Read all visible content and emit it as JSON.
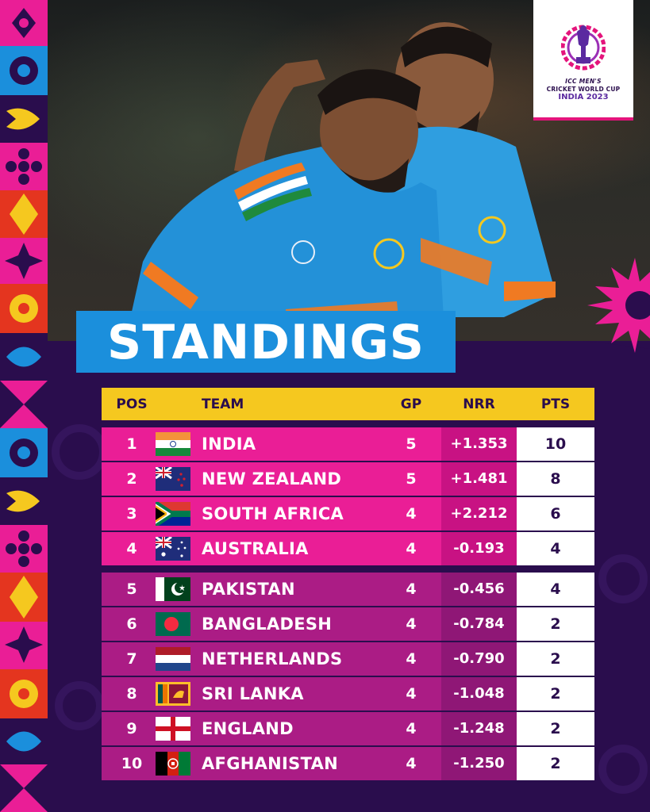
{
  "logo": {
    "line1": "ICC MEN'S",
    "line2": "CRICKET WORLD CUP",
    "line3": "INDIA 2023",
    "icon": "trophy-logo-icon"
  },
  "heading": "STANDINGS",
  "table": {
    "headers": {
      "pos": "POS",
      "team": "TEAM",
      "gp": "GP",
      "nrr": "NRR",
      "pts": "PTS"
    },
    "rows": [
      {
        "pos": "1",
        "team": "INDIA",
        "gp": "5",
        "nrr": "+1.353",
        "pts": "10",
        "flag": "india-flag-icon"
      },
      {
        "pos": "2",
        "team": "NEW ZEALAND",
        "gp": "5",
        "nrr": "+1.481",
        "pts": "8",
        "flag": "new-zealand-flag-icon"
      },
      {
        "pos": "3",
        "team": "SOUTH AFRICA",
        "gp": "4",
        "nrr": "+2.212",
        "pts": "6",
        "flag": "south-africa-flag-icon"
      },
      {
        "pos": "4",
        "team": "AUSTRALIA",
        "gp": "4",
        "nrr": "-0.193",
        "pts": "4",
        "flag": "australia-flag-icon"
      },
      {
        "pos": "5",
        "team": "PAKISTAN",
        "gp": "4",
        "nrr": "-0.456",
        "pts": "4",
        "flag": "pakistan-flag-icon"
      },
      {
        "pos": "6",
        "team": "BANGLADESH",
        "gp": "4",
        "nrr": "-0.784",
        "pts": "2",
        "flag": "bangladesh-flag-icon"
      },
      {
        "pos": "7",
        "team": "NETHERLANDS",
        "gp": "4",
        "nrr": "-0.790",
        "pts": "2",
        "flag": "netherlands-flag-icon"
      },
      {
        "pos": "8",
        "team": "SRI LANKA",
        "gp": "4",
        "nrr": "-1.048",
        "pts": "2",
        "flag": "sri-lanka-flag-icon"
      },
      {
        "pos": "9",
        "team": "ENGLAND",
        "gp": "4",
        "nrr": "-1.248",
        "pts": "2",
        "flag": "england-flag-icon"
      },
      {
        "pos": "10",
        "team": "AFGHANISTAN",
        "gp": "4",
        "nrr": "-1.250",
        "pts": "2",
        "flag": "afghanistan-flag-icon"
      }
    ]
  },
  "colors": {
    "background": "#2a0d4d",
    "heading_box": "#1b8fdc",
    "header_row": "#f5c81f",
    "top4_row": "#ea1e96",
    "rest_row": "#ab1c85",
    "accent_pink": "#e4147c"
  }
}
